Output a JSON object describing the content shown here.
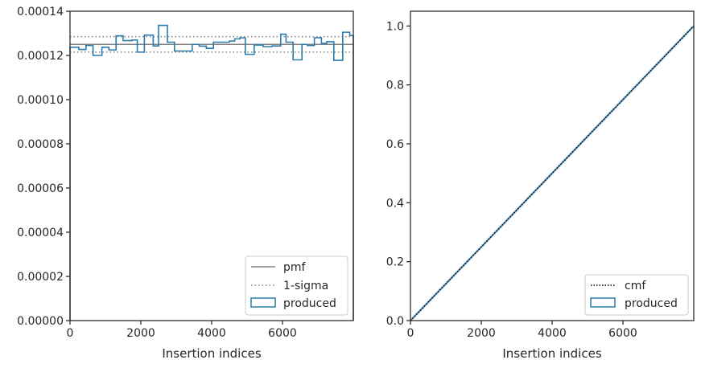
{
  "colors": {
    "produced": "#2a7bab",
    "pmf": "#808080",
    "sigma": "#808080",
    "cmf": "#000000",
    "spine": "#262626"
  },
  "chart_data": [
    {
      "type": "line",
      "xlabel": "Insertion indices",
      "ylabel": "",
      "xlim": [
        0,
        8000
      ],
      "ylim": [
        0,
        0.00014
      ],
      "xticks": [
        0,
        2000,
        4000,
        6000
      ],
      "xtick_labels": [
        "0",
        "2000",
        "4000",
        "6000"
      ],
      "yticks": [
        0,
        2e-05,
        4e-05,
        6e-05,
        8e-05,
        0.0001,
        0.00012,
        0.00014
      ],
      "ytick_labels": [
        "0.00000",
        "0.00002",
        "0.00004",
        "0.00006",
        "0.00008",
        "0.00010",
        "0.00012",
        "0.00014"
      ],
      "legend_position": "lower right",
      "legend": [
        "pmf",
        "1-sigma",
        "produced"
      ],
      "pmf": 0.000125,
      "sigma_upper": 0.0001285,
      "sigma_lower": 0.0001215,
      "produced": {
        "bin_edges": [
          0,
          250,
          450,
          650,
          900,
          1100,
          1300,
          1500,
          1750,
          1900,
          2100,
          2350,
          2500,
          2750,
          2950,
          3150,
          3450,
          3650,
          3850,
          4050,
          4250,
          4500,
          4650,
          4800,
          4950,
          5200,
          5450,
          5700,
          5950,
          6100,
          6300,
          6550,
          6700,
          6900,
          7100,
          7250,
          7450,
          7700,
          7900,
          8000
        ],
        "values": [
          0.0001237,
          0.0001227,
          0.0001245,
          0.00012,
          0.0001237,
          0.0001225,
          0.0001289,
          0.0001267,
          0.000127,
          0.0001215,
          0.0001292,
          0.0001243,
          0.0001336,
          0.000126,
          0.000122,
          0.000122,
          0.000125,
          0.0001242,
          0.0001232,
          0.000126,
          0.000126,
          0.0001265,
          0.0001275,
          0.000128,
          0.0001205,
          0.0001247,
          0.000124,
          0.0001243,
          0.0001296,
          0.000126,
          0.000118,
          0.000125,
          0.0001245,
          0.000128,
          0.0001255,
          0.0001262,
          0.0001178,
          0.0001305,
          0.000129
        ]
      }
    },
    {
      "type": "line",
      "xlabel": "Insertion indices",
      "ylabel": "",
      "xlim": [
        0,
        8000
      ],
      "ylim": [
        0,
        1.05
      ],
      "xticks": [
        0,
        2000,
        4000,
        6000
      ],
      "xtick_labels": [
        "0",
        "2000",
        "4000",
        "6000"
      ],
      "yticks": [
        0,
        0.2,
        0.4,
        0.6,
        0.8,
        1.0
      ],
      "ytick_labels": [
        "0.0",
        "0.2",
        "0.4",
        "0.6",
        "0.8",
        "1.0"
      ],
      "legend_position": "lower right",
      "legend": [
        "cmf",
        "produced"
      ],
      "cmf": {
        "x": [
          0,
          8000
        ],
        "y": [
          0,
          1.0
        ]
      },
      "produced": {
        "x": [
          0,
          8000
        ],
        "y": [
          0,
          1.0
        ]
      }
    }
  ]
}
